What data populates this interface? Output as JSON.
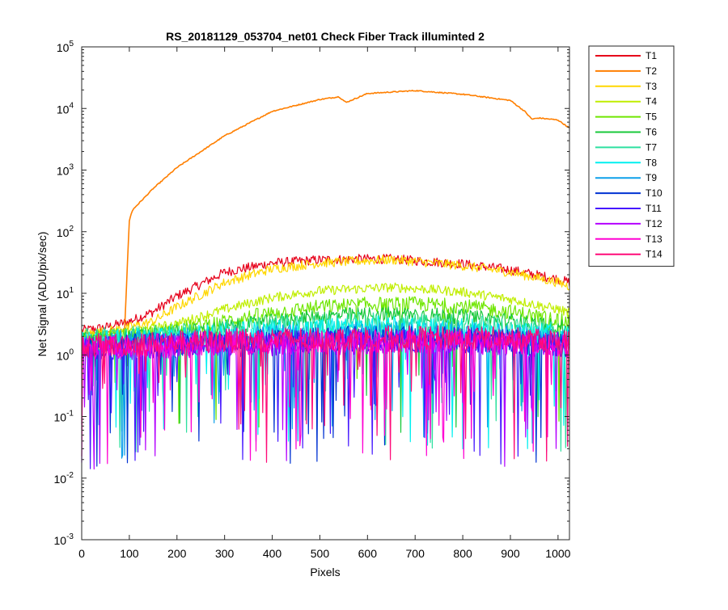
{
  "chart_data": {
    "type": "line",
    "title": "RS_20181129_053704_net01   Check Fiber     Track illuminted 2",
    "xlabel": "Pixels",
    "ylabel": "Net Signal (ADU/pix/sec)",
    "xlim": [
      0,
      1024
    ],
    "ylim": [
      0.001,
      100000
    ],
    "yscale": "log",
    "grid": false,
    "legend_position": "outside-right",
    "x_ticks": [
      0,
      100,
      200,
      300,
      400,
      500,
      600,
      700,
      800,
      900,
      1000
    ],
    "y_ticks": [
      {
        "value": 0.001,
        "base": "10",
        "exp": "-3"
      },
      {
        "value": 0.01,
        "base": "10",
        "exp": "-2"
      },
      {
        "value": 0.1,
        "base": "10",
        "exp": "-1"
      },
      {
        "value": 1,
        "base": "10",
        "exp": "0"
      },
      {
        "value": 10,
        "base": "10",
        "exp": "1"
      },
      {
        "value": 100,
        "base": "10",
        "exp": "2"
      },
      {
        "value": 1000,
        "base": "10",
        "exp": "3"
      },
      {
        "value": 10000,
        "base": "10",
        "exp": "4"
      },
      {
        "value": 100000,
        "base": "10",
        "exp": "5"
      }
    ],
    "series": [
      {
        "name": "T1",
        "color": "#e6001a",
        "x": [
          0,
          50,
          100,
          150,
          200,
          300,
          400,
          500,
          600,
          650,
          700,
          800,
          900,
          1000,
          1024
        ],
        "y": [
          2.5,
          2.8,
          3.5,
          5,
          9,
          22,
          31,
          35,
          36,
          36,
          34,
          30,
          24,
          17,
          15
        ]
      },
      {
        "name": "T2",
        "color": "#ff7f00",
        "x": [
          0,
          90,
          95,
          100,
          105,
          110,
          150,
          200,
          300,
          400,
          500,
          540,
          555,
          565,
          600,
          700,
          800,
          900,
          930,
          945,
          960,
          1000,
          1024
        ],
        "y": [
          2.2,
          2.5,
          20,
          150,
          210,
          240,
          500,
          1100,
          3600,
          9000,
          14000,
          15500,
          12500,
          13500,
          17500,
          19500,
          17000,
          13500,
          9000,
          6700,
          7000,
          6500,
          4800
        ]
      },
      {
        "name": "T3",
        "color": "#ffd700",
        "x": [
          0,
          50,
          100,
          150,
          200,
          300,
          400,
          500,
          600,
          650,
          700,
          800,
          900,
          1000,
          1024
        ],
        "y": [
          2.2,
          2.4,
          2.8,
          3.5,
          6,
          15,
          25,
          31,
          34,
          35,
          33,
          28,
          22,
          15,
          13
        ]
      },
      {
        "name": "T4",
        "color": "#c0ee00",
        "x": [
          0,
          100,
          200,
          300,
          400,
          500,
          600,
          650,
          700,
          800,
          900,
          1000,
          1024
        ],
        "y": [
          2,
          2.3,
          3.2,
          5.5,
          8.5,
          11,
          12,
          12.5,
          12,
          10.5,
          8,
          5.5,
          4.8
        ]
      },
      {
        "name": "T5",
        "color": "#6fe600",
        "x": [
          0,
          100,
          200,
          300,
          400,
          500,
          600,
          700,
          800,
          900,
          1000,
          1024
        ],
        "y": [
          1.9,
          2.1,
          2.6,
          3.5,
          4.8,
          6,
          6.6,
          6.7,
          6.2,
          5,
          3.7,
          3.3
        ]
      },
      {
        "name": "T6",
        "color": "#18c83a",
        "x": [
          0,
          100,
          200,
          300,
          400,
          500,
          600,
          700,
          800,
          900,
          1000,
          1024
        ],
        "y": [
          1.8,
          2,
          2.3,
          2.8,
          3.5,
          4.2,
          4.6,
          4.6,
          4.2,
          3.6,
          2.9,
          2.6
        ]
      },
      {
        "name": "T7",
        "color": "#2ee0a0",
        "x": [
          0,
          200,
          400,
          600,
          800,
          1000,
          1024
        ],
        "y": [
          1.7,
          2.1,
          2.8,
          3.2,
          3,
          2.3,
          2.1
        ]
      },
      {
        "name": "T8",
        "color": "#00f0f0",
        "x": [
          0,
          200,
          400,
          600,
          800,
          1000,
          1024
        ],
        "y": [
          1.6,
          1.9,
          2.4,
          2.8,
          2.6,
          2,
          1.9
        ]
      },
      {
        "name": "T9",
        "color": "#0ea0ea",
        "x": [
          0,
          200,
          400,
          600,
          800,
          1000,
          1024
        ],
        "y": [
          1.5,
          1.7,
          2.0,
          2.3,
          2.2,
          1.8,
          1.7
        ]
      },
      {
        "name": "T10",
        "color": "#0032d2",
        "x": [
          0,
          200,
          400,
          600,
          800,
          1000,
          1024
        ],
        "y": [
          1.3,
          1.5,
          1.7,
          1.9,
          1.8,
          1.5,
          1.4
        ]
      },
      {
        "name": "T11",
        "color": "#4618ff",
        "x": [
          0,
          200,
          400,
          600,
          800,
          1000,
          1024
        ],
        "y": [
          1.3,
          1.4,
          1.6,
          1.7,
          1.7,
          1.5,
          1.4
        ]
      },
      {
        "name": "T12",
        "color": "#b400ff",
        "x": [
          0,
          200,
          400,
          600,
          800,
          1000,
          1024
        ],
        "y": [
          1.2,
          1.4,
          1.5,
          1.6,
          1.6,
          1.4,
          1.3
        ]
      },
      {
        "name": "T13",
        "color": "#ff00d2",
        "x": [
          0,
          200,
          400,
          600,
          800,
          1000,
          1024
        ],
        "y": [
          1.3,
          1.5,
          1.6,
          1.7,
          1.7,
          1.5,
          1.4
        ]
      },
      {
        "name": "T14",
        "color": "#ff0a78",
        "x": [
          0,
          200,
          400,
          600,
          800,
          1000,
          1024
        ],
        "y": [
          1.4,
          1.6,
          1.8,
          1.9,
          1.9,
          1.7,
          1.6
        ]
      }
    ]
  }
}
